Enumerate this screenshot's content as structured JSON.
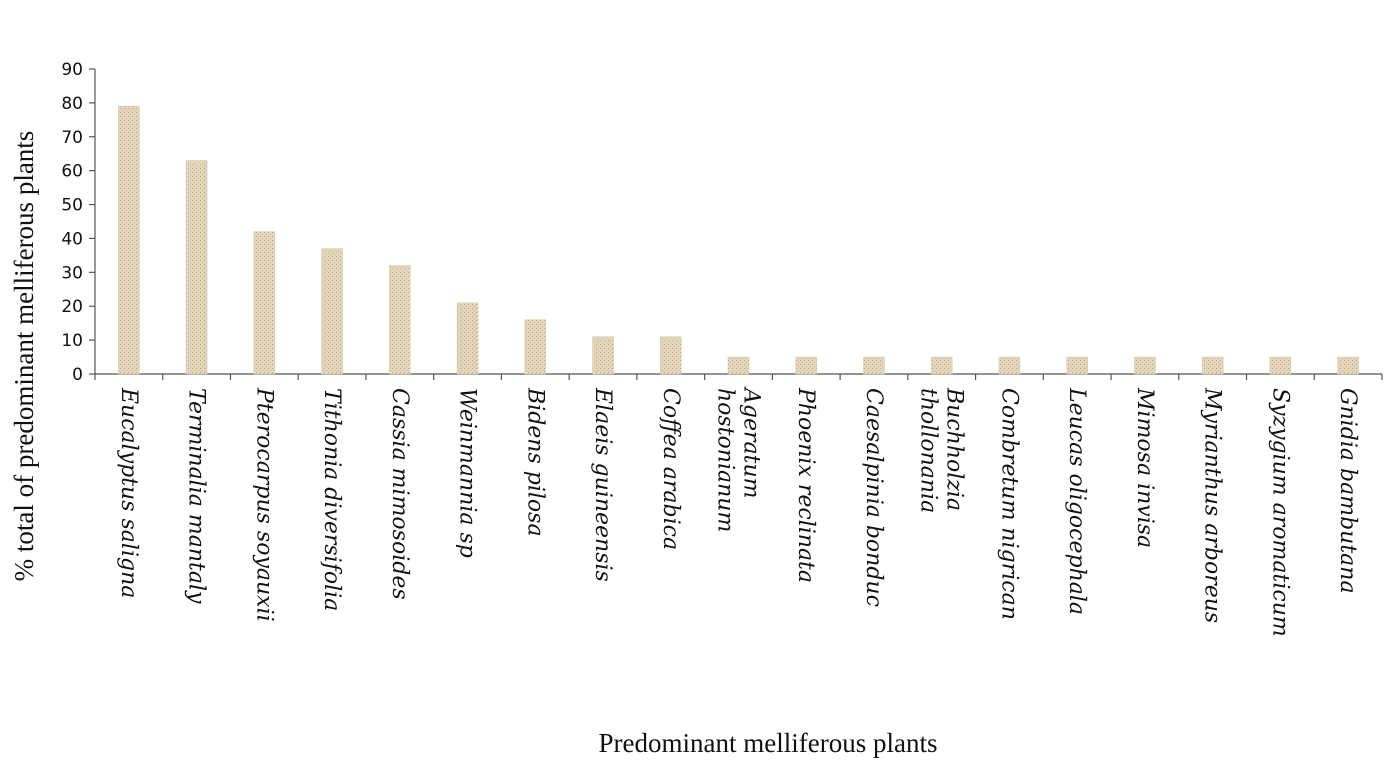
{
  "chart_data": {
    "type": "bar",
    "xlabel": "Predominant melliferous plants",
    "ylabel": "% total of predominant melliferous plants",
    "ylim": [
      0,
      90
    ],
    "yticks": [
      0,
      10,
      20,
      30,
      40,
      50,
      60,
      70,
      80,
      90
    ],
    "grid": false,
    "categories": [
      [
        "Eucalyptus saligna"
      ],
      [
        "Terminalia mantaly"
      ],
      [
        "Pterocarpus soyauxii"
      ],
      [
        "Tithonia diversifolia"
      ],
      [
        "Cassia mimosoides"
      ],
      [
        "Weinmannia sp"
      ],
      [
        "Bidens pilosa"
      ],
      [
        "Elaeis guineensis"
      ],
      [
        "Coffea arabica"
      ],
      [
        "Ageratum",
        "hostonianum"
      ],
      [
        "Phoenix reclinata"
      ],
      [
        "Caesalpinia bonduc"
      ],
      [
        "Buchholzia",
        "thollonania"
      ],
      [
        "Combretum nigrican"
      ],
      [
        "Leucas oligocephala"
      ],
      [
        "Mimosa invisa"
      ],
      [
        "Myrianthus arboreus"
      ],
      [
        "Syzygium aromaticum"
      ],
      [
        "Gnidia bambutana"
      ]
    ],
    "values": [
      79,
      63,
      42,
      37,
      32,
      21,
      16,
      11,
      11,
      5,
      5,
      5,
      5,
      5,
      5,
      5,
      5,
      5,
      5
    ],
    "bar_color": "#d8c8a8"
  }
}
